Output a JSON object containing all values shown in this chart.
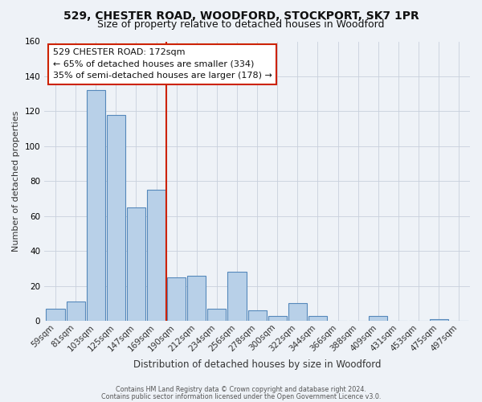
{
  "title1": "529, CHESTER ROAD, WOODFORD, STOCKPORT, SK7 1PR",
  "title2": "Size of property relative to detached houses in Woodford",
  "xlabel": "Distribution of detached houses by size in Woodford",
  "ylabel": "Number of detached properties",
  "bin_labels": [
    "59sqm",
    "81sqm",
    "103sqm",
    "125sqm",
    "147sqm",
    "169sqm",
    "190sqm",
    "212sqm",
    "234sqm",
    "256sqm",
    "278sqm",
    "300sqm",
    "322sqm",
    "344sqm",
    "366sqm",
    "388sqm",
    "409sqm",
    "431sqm",
    "453sqm",
    "475sqm",
    "497sqm"
  ],
  "bar_values": [
    7,
    11,
    132,
    118,
    65,
    75,
    25,
    26,
    7,
    28,
    6,
    3,
    10,
    3,
    0,
    0,
    3,
    0,
    0,
    1,
    0
  ],
  "bar_color": "#b8d0e8",
  "bar_edge_color": "#5588bb",
  "vline_color": "#cc2200",
  "annotation_title": "529 CHESTER ROAD: 172sqm",
  "annotation_line1": "← 65% of detached houses are smaller (334)",
  "annotation_line2": "35% of semi-detached houses are larger (178) →",
  "annotation_box_facecolor": "#ffffff",
  "annotation_box_edgecolor": "#cc2200",
  "ylim": [
    0,
    160
  ],
  "yticks": [
    0,
    20,
    40,
    60,
    80,
    100,
    120,
    140,
    160
  ],
  "footnote1": "Contains HM Land Registry data © Crown copyright and database right 2024.",
  "footnote2": "Contains public sector information licensed under the Open Government Licence v3.0.",
  "bg_color": "#eef2f7",
  "grid_color": "#c8d0dc",
  "title1_fontsize": 10,
  "title2_fontsize": 9,
  "ylabel_fontsize": 8,
  "xlabel_fontsize": 8.5,
  "tick_fontsize": 7.5,
  "annotation_fontsize": 8,
  "footnote_fontsize": 5.8
}
